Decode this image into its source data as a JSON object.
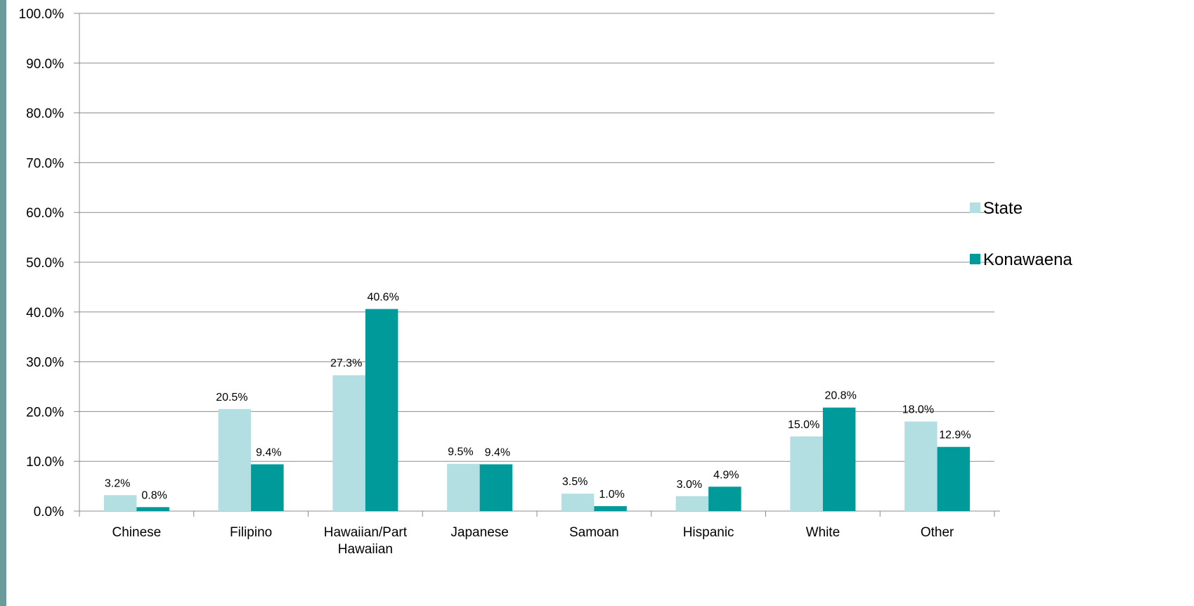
{
  "chart_data": {
    "type": "bar",
    "categories": [
      "Chinese",
      "Filipino",
      "Hawaiian/Part Hawaiian",
      "Japanese",
      "Samoan",
      "Hispanic",
      "White",
      "Other"
    ],
    "series": [
      {
        "name": "State",
        "color": "#b3dfe3",
        "values": [
          3.2,
          20.5,
          27.3,
          9.5,
          3.5,
          3.0,
          15.0,
          18.0
        ],
        "labels": [
          "3.2%",
          "20.5%",
          "27.3%",
          "9.5%",
          "3.5%",
          "3.0%",
          "15.0%",
          "18.0%"
        ]
      },
      {
        "name": "Konawaena",
        "color": "#009a9a",
        "values": [
          0.8,
          9.4,
          40.6,
          9.4,
          1.0,
          4.9,
          20.8,
          12.9
        ],
        "labels": [
          "0.8%",
          "9.4%",
          "40.6%",
          "9.4%",
          "1.0%",
          "4.9%",
          "20.8%",
          "12.9%"
        ]
      }
    ],
    "ylim": [
      0,
      100
    ],
    "y_ticks": [
      0,
      10,
      20,
      30,
      40,
      50,
      60,
      70,
      80,
      90,
      100
    ],
    "y_tick_labels": [
      "0.0%",
      "10.0%",
      "20.0%",
      "30.0%",
      "40.0%",
      "50.0%",
      "60.0%",
      "70.0%",
      "80.0%",
      "90.0%",
      "100.0%"
    ],
    "grid": true,
    "legend_position": "right",
    "title": "",
    "xlabel": "",
    "ylabel": ""
  },
  "theme": {
    "side_stripe_color": "#6a9a9a",
    "grid_color": "#8c8c8c"
  }
}
